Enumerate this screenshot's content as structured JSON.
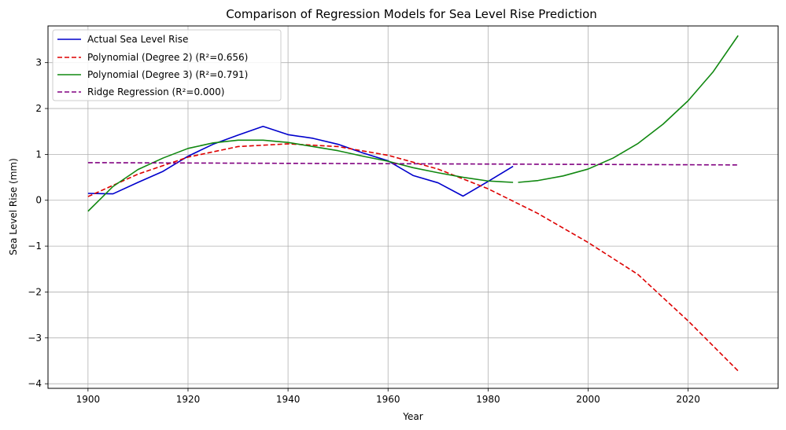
{
  "chart_data": {
    "type": "line",
    "title": "Comparison of Regression Models for Sea Level Rise Prediction",
    "xlabel": "Year",
    "ylabel": "Sea Level Rise (mm)",
    "xlim": [
      1892,
      2038
    ],
    "ylim": [
      -4.1,
      3.8
    ],
    "xticks": [
      1900,
      1920,
      1940,
      1960,
      1980,
      2000,
      2020
    ],
    "yticks": [
      -4,
      -3,
      -2,
      -1,
      0,
      1,
      2,
      3
    ],
    "grid": true,
    "legend_position": "top-left",
    "series": [
      {
        "name": "Actual Sea Level Rise",
        "color": "#0000cc",
        "dash": "solid",
        "x": [
          1900,
          1905,
          1910,
          1915,
          1920,
          1925,
          1930,
          1935,
          1940,
          1945,
          1950,
          1955,
          1960,
          1965,
          1970,
          1975,
          1980,
          1985
        ],
        "y": [
          0.15,
          0.14,
          0.39,
          0.63,
          0.96,
          1.22,
          1.42,
          1.61,
          1.43,
          1.35,
          1.22,
          1.03,
          0.86,
          0.54,
          0.38,
          0.09,
          0.41,
          0.74
        ]
      },
      {
        "name": "Polynomial (Degree 2) (R²=0.656)",
        "color": "#dd0000",
        "dash": "dashed",
        "x": [
          1900,
          1910,
          1920,
          1930,
          1940,
          1950,
          1960,
          1970,
          1980,
          1990,
          2000,
          2010,
          2020,
          2030
        ],
        "y": [
          0.08,
          0.57,
          0.94,
          1.17,
          1.23,
          1.17,
          0.98,
          0.68,
          0.25,
          -0.29,
          -0.92,
          -1.62,
          -2.63,
          -3.72
        ]
      },
      {
        "name": "Polynomial (Degree 3) (R²=0.791)",
        "color": "#118811",
        "dash": "solid",
        "x": [
          1900,
          1905,
          1910,
          1915,
          1920,
          1925,
          1930,
          1935,
          1940,
          1945,
          1950,
          1955,
          1960,
          1965,
          1970,
          1975,
          1980,
          1985,
          null,
          1986,
          1990,
          1995,
          2000,
          2005,
          2010,
          2015,
          2020,
          2025,
          2030
        ],
        "y": [
          -0.24,
          0.3,
          0.67,
          0.92,
          1.13,
          1.25,
          1.31,
          1.31,
          1.26,
          1.17,
          1.08,
          0.96,
          0.85,
          0.71,
          0.6,
          0.5,
          0.42,
          0.39,
          null,
          0.39,
          0.43,
          0.53,
          0.68,
          0.92,
          1.24,
          1.66,
          2.17,
          2.8,
          3.59
        ]
      },
      {
        "name": "Ridge Regression (R²=0.000)",
        "color": "#800080",
        "dash": "dashed",
        "x": [
          1900,
          2030
        ],
        "y": [
          0.82,
          0.77
        ]
      }
    ]
  }
}
